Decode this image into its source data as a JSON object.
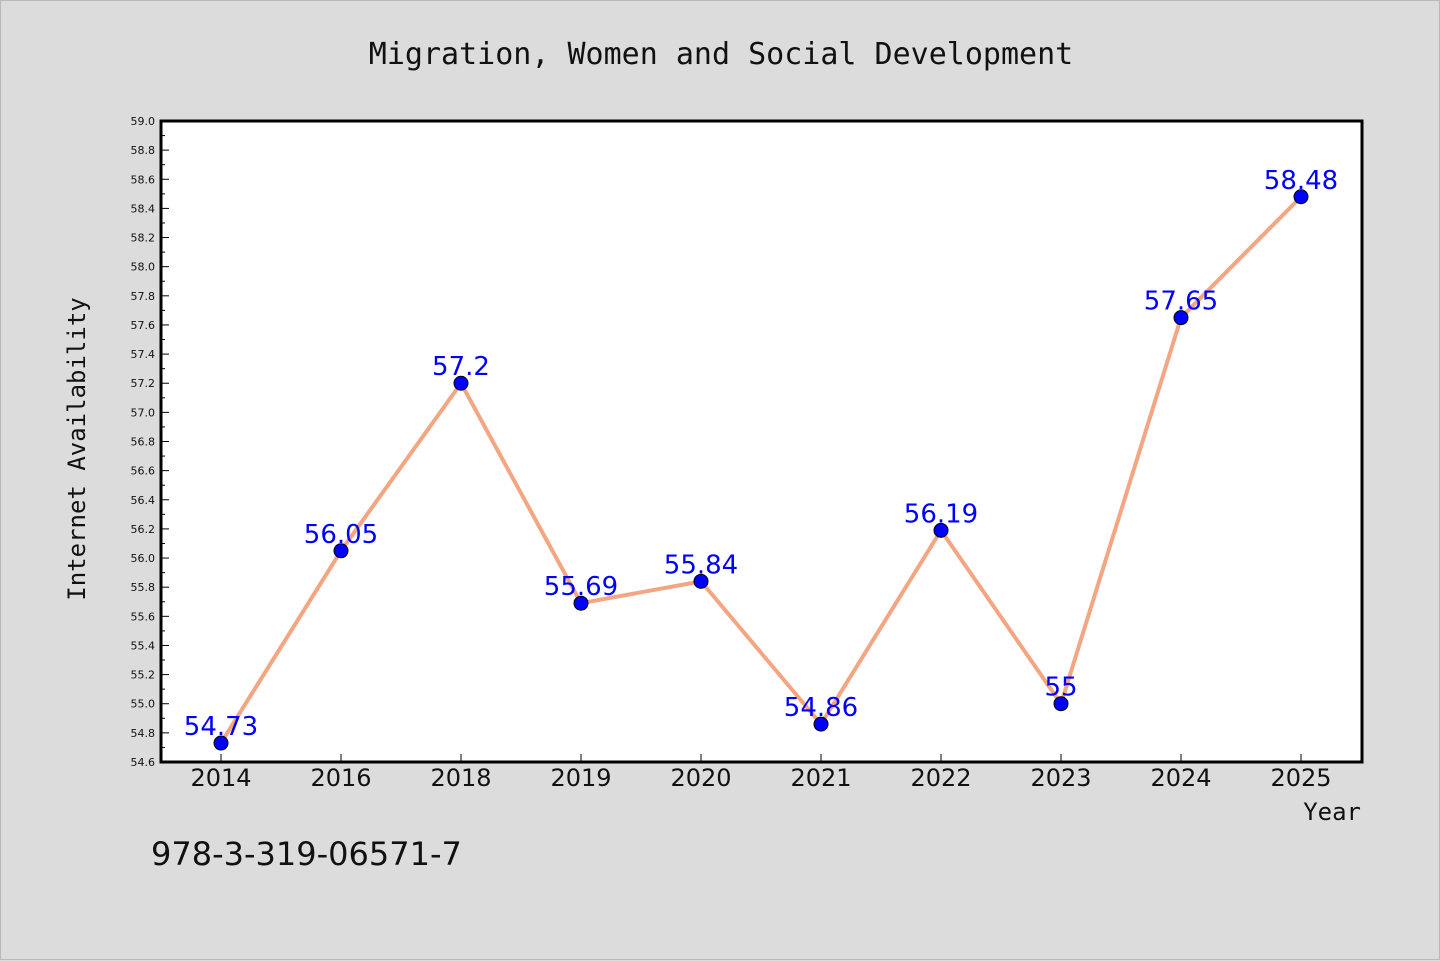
{
  "chart_data": {
    "type": "line",
    "title": "Migration, Women and Social Development",
    "xlabel": "Year",
    "ylabel": "Internet Availability",
    "categories": [
      "2014",
      "2016",
      "2018",
      "2019",
      "2020",
      "2021",
      "2022",
      "2023",
      "2024",
      "2025"
    ],
    "series": [
      {
        "values": [
          54.73,
          56.05,
          57.2,
          55.69,
          55.84,
          54.86,
          56.19,
          55,
          57.65,
          58.48
        ],
        "data_labels": [
          "54.73",
          "56.05",
          "57.2",
          "55.69",
          "55.84",
          "54.86",
          "56.19",
          "55",
          "57.65",
          "58.48"
        ]
      }
    ],
    "ylim": [
      54.6,
      59.0
    ],
    "yticks": [
      "54.6",
      "54.8",
      "55.0",
      "55.2",
      "55.4",
      "55.6",
      "55.8",
      "56.0",
      "56.2",
      "56.4",
      "56.6",
      "56.8",
      "57.0",
      "57.2",
      "57.4",
      "57.6",
      "57.8",
      "58.0",
      "58.2",
      "58.4",
      "58.6",
      "58.8",
      "59.0"
    ],
    "grid": false,
    "legend": "none",
    "line_color": "#f4a582",
    "marker_color": "#0000ff",
    "label_color": "#0000ff"
  },
  "footer_text": "978-3-319-06571-7"
}
